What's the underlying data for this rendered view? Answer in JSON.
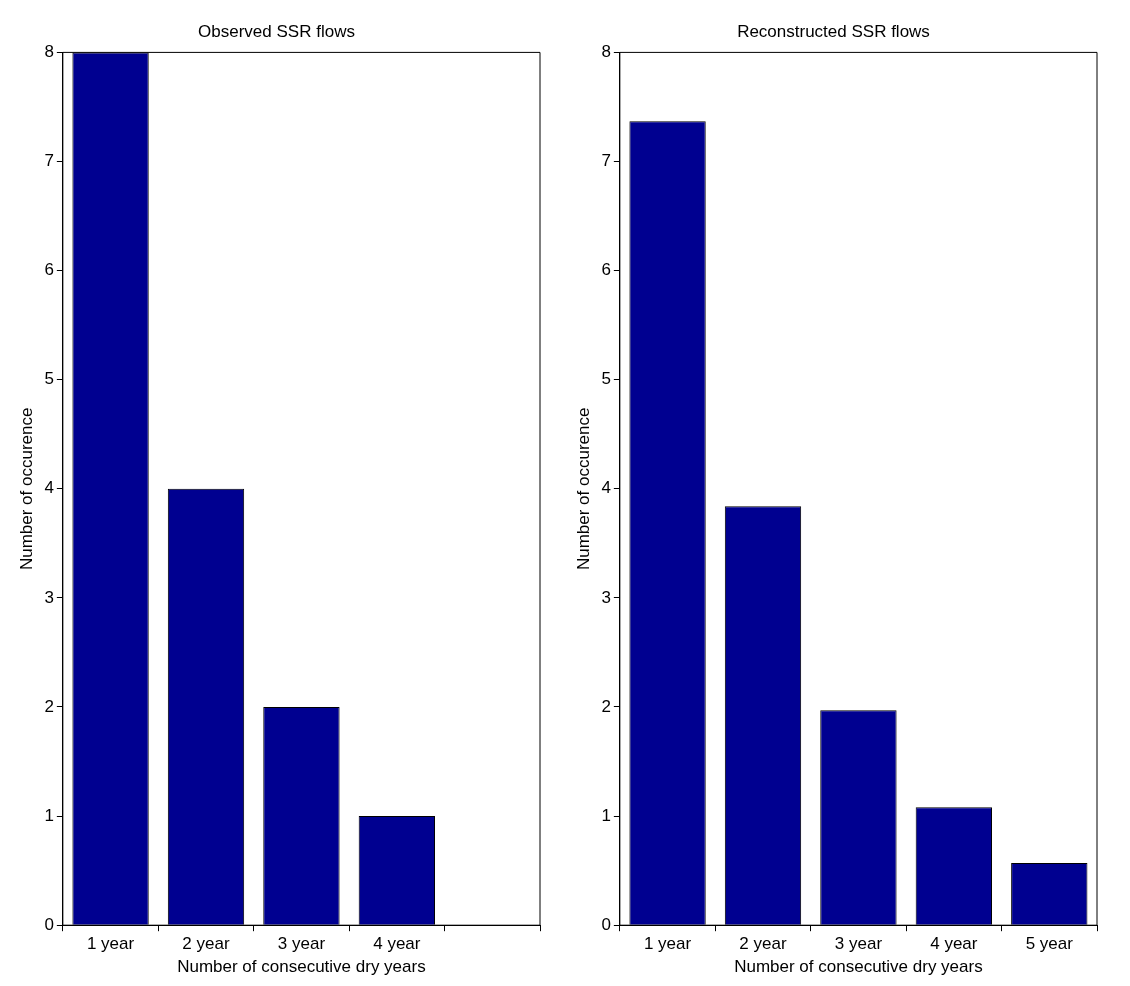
{
  "chart_data": [
    {
      "type": "bar",
      "title": "Observed SSR flows",
      "xlabel": "Number of consecutive dry years",
      "ylabel": "Number of occurence",
      "categories": [
        "1 year",
        "2 year",
        "3 year",
        "4 year",
        null
      ],
      "values": [
        8,
        4,
        2,
        1,
        null
      ],
      "color": "#000090",
      "ylim": [
        0,
        8
      ],
      "yticks": [
        0,
        1,
        2,
        3,
        4,
        5,
        6,
        7,
        8
      ],
      "grid": false,
      "legend": false
    },
    {
      "type": "bar",
      "title": "Reconstructed SSR flows",
      "xlabel": "Number of consecutive dry years",
      "ylabel": "Number of occurence",
      "categories": [
        "1 year",
        "2 year",
        "3 year",
        "4 year",
        "5 year"
      ],
      "values": [
        7.37,
        3.84,
        1.97,
        1.08,
        0.57
      ],
      "color": "#000090",
      "ylim": [
        0,
        8
      ],
      "yticks": [
        0,
        1,
        2,
        3,
        4,
        5,
        6,
        7,
        8
      ],
      "grid": false,
      "legend": false
    }
  ]
}
